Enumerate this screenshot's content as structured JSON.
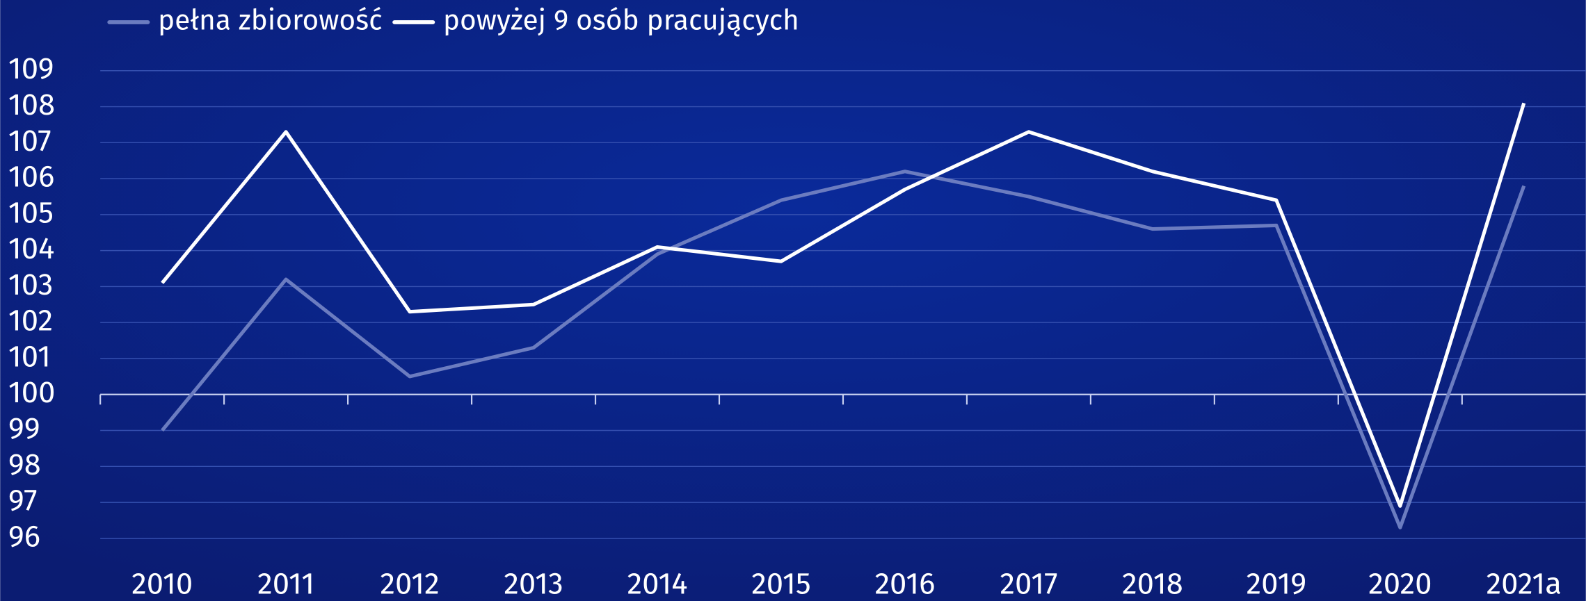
{
  "chart_data": {
    "type": "line",
    "categories": [
      "2010",
      "2011",
      "2012",
      "2013",
      "2014",
      "2015",
      "2016",
      "2017",
      "2018",
      "2019",
      "2020",
      "2021a"
    ],
    "series": [
      {
        "name": "pełna zbiorowość",
        "color": "#6b7cc0",
        "values": [
          99.0,
          103.2,
          100.5,
          101.3,
          103.9,
          105.4,
          106.2,
          105.5,
          104.6,
          104.7,
          96.3,
          105.8
        ]
      },
      {
        "name": "powyżej 9 osób pracujących",
        "color": "#ffffff",
        "values": [
          103.1,
          107.3,
          102.3,
          102.5,
          104.1,
          103.7,
          105.7,
          107.3,
          106.2,
          105.4,
          96.9,
          108.1
        ]
      }
    ],
    "ylim": [
      96,
      109
    ],
    "yticks": [
      96,
      97,
      98,
      99,
      100,
      101,
      102,
      103,
      104,
      105,
      106,
      107,
      108,
      109
    ],
    "grid": true,
    "xaxis_crosses": 100,
    "legend": "top-left"
  }
}
